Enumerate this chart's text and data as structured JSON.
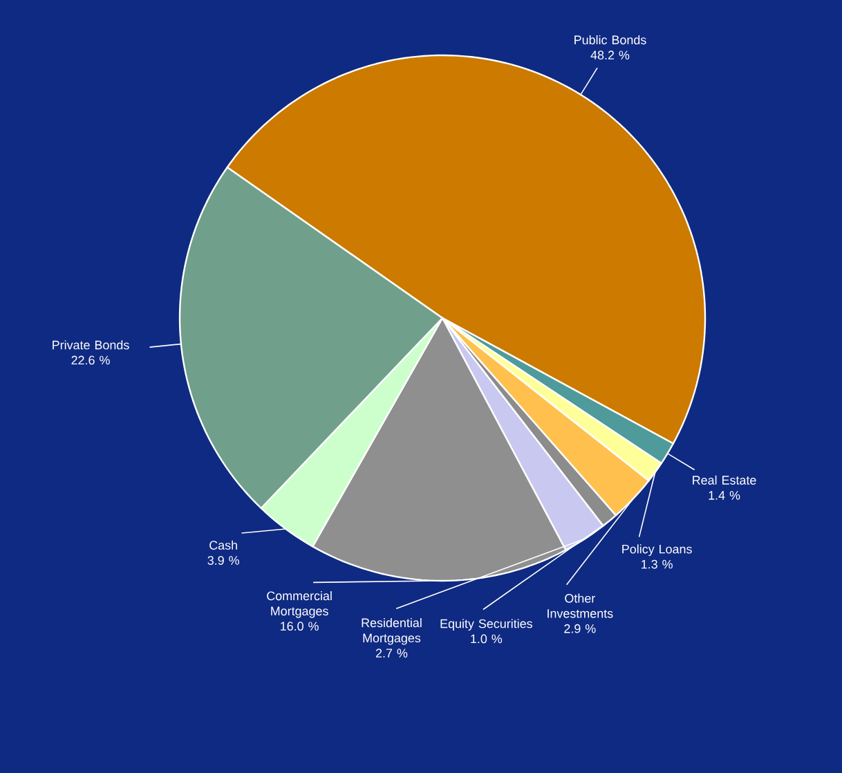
{
  "chart_data": {
    "type": "pie",
    "categories": [
      "Public Bonds",
      "Real Estate",
      "Policy Loans",
      "Other Investments",
      "Equity Securities",
      "Residential Mortgages",
      "Commercial Mortgages",
      "Cash",
      "Private Bonds"
    ],
    "values": [
      48.2,
      1.4,
      1.3,
      2.9,
      1.0,
      2.7,
      16.0,
      3.9,
      22.6
    ],
    "value_labels": [
      "48.2 %",
      "1.4 %",
      "1.3 %",
      "2.9 %",
      "1.0 %",
      "2.7 %",
      "16.0 %",
      "3.9 %",
      "22.6 %"
    ],
    "colors": [
      "#cc7a00",
      "#4f9a9a",
      "#ffff99",
      "#ffc04d",
      "#8c8c8c",
      "#c8c8f0",
      "#8f8f8f",
      "#ccffcc",
      "#70a08c"
    ]
  }
}
